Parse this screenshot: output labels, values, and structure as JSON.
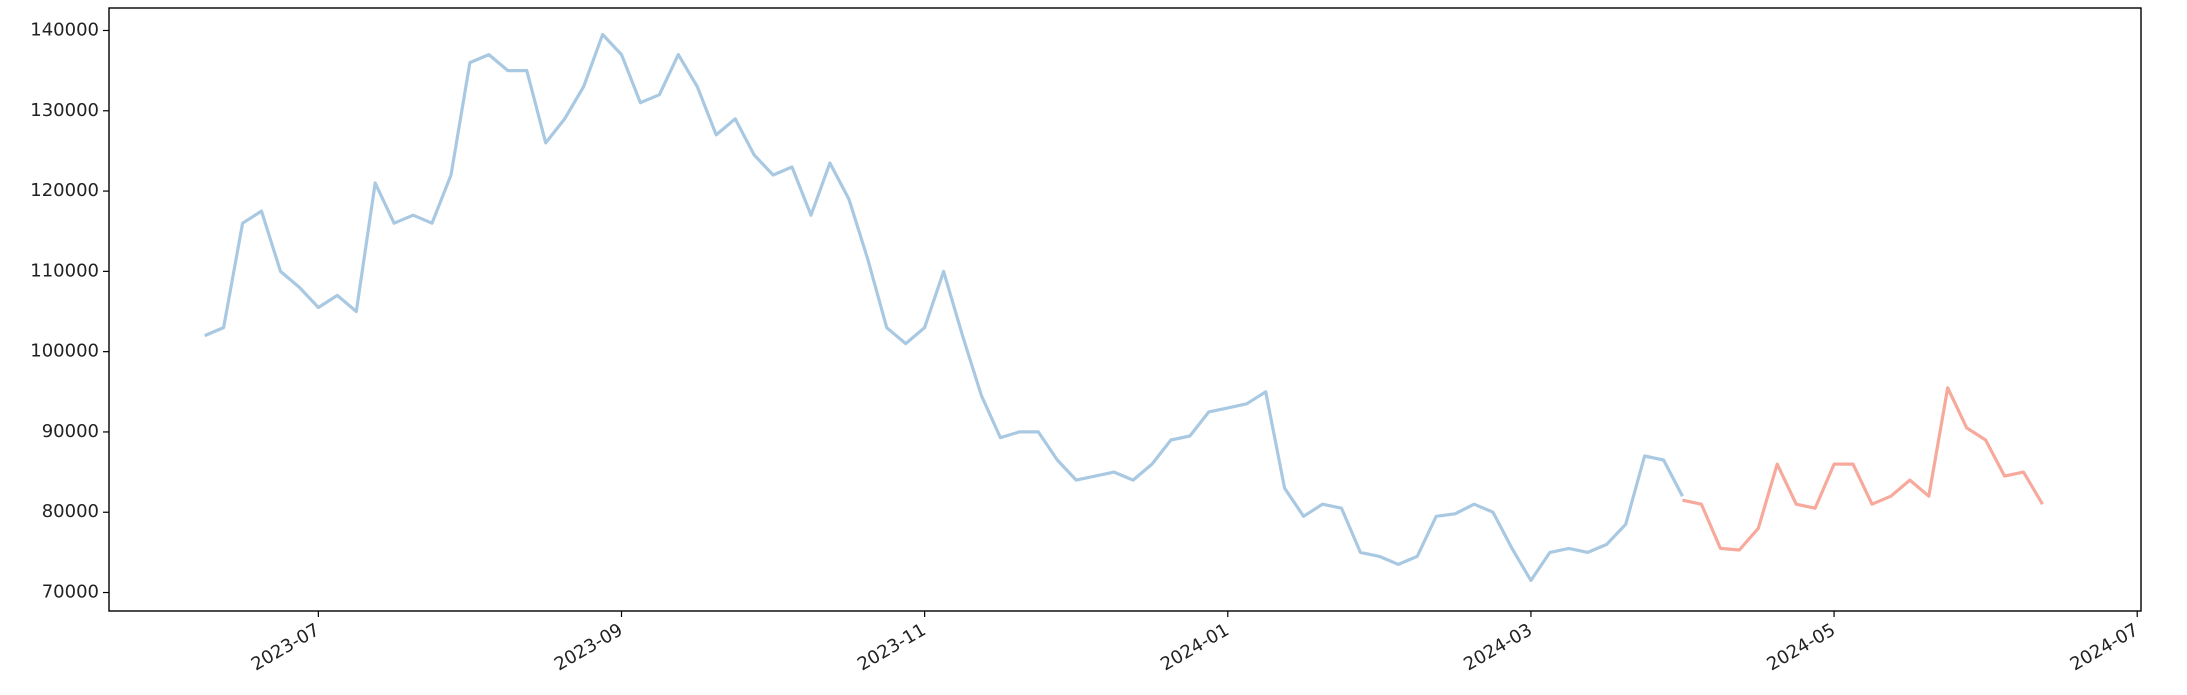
{
  "chart_data": {
    "type": "line",
    "categories": [
      null,
      null,
      null,
      null,
      null,
      null,
      null,
      null,
      "2023-07",
      null,
      null,
      null,
      null,
      null,
      null,
      null,
      null,
      null,
      null,
      null,
      null,
      null,
      null,
      null,
      "2023-09",
      null,
      null,
      null,
      null,
      null,
      null,
      null,
      null,
      null,
      null,
      null,
      null,
      null,
      null,
      null,
      "2023-11",
      null,
      null,
      null,
      null,
      null,
      null,
      null,
      null,
      null,
      null,
      null,
      null,
      null,
      null,
      null,
      "2024-01",
      null,
      null,
      null,
      null,
      null,
      null,
      null,
      null,
      null,
      null,
      null,
      null,
      null,
      null,
      null,
      "2024-03",
      null,
      null,
      null,
      null,
      null,
      null,
      null,
      null,
      null,
      null,
      null,
      null,
      null,
      null,
      null,
      "2024-05",
      null,
      null,
      null,
      null,
      null,
      null,
      null,
      null,
      null,
      null,
      null,
      null,
      null,
      null,
      null,
      "2024-07"
    ],
    "series": [
      {
        "color": "#a9c9e2",
        "values": [
          null,
          null,
          102000,
          103000,
          116000,
          117500,
          110000,
          108000,
          105500,
          107000,
          105000,
          121000,
          116000,
          117000,
          116000,
          122000,
          136000,
          137000,
          135000,
          135000,
          126000,
          129000,
          133000,
          139500,
          137000,
          131000,
          132000,
          137000,
          133000,
          127000,
          129000,
          124500,
          122000,
          123000,
          117000,
          123500,
          119000,
          111500,
          103000,
          101000,
          103000,
          110000,
          102000,
          94500,
          89300,
          90000,
          90000,
          86500,
          84000,
          84500,
          85000,
          84000,
          86000,
          89000,
          89500,
          92500,
          93000,
          93500,
          95000,
          83000,
          79500,
          81000,
          80500,
          75000,
          74500,
          73500,
          74500,
          79500,
          79800,
          81000,
          80000,
          75500,
          71500,
          75000,
          75500,
          75000,
          76000,
          78500,
          87000,
          86500,
          82000,
          null,
          null,
          null,
          null,
          null,
          null,
          null,
          null,
          null,
          null,
          null,
          null,
          null,
          null,
          null,
          null,
          null,
          null,
          null,
          null,
          null,
          null,
          null,
          null
        ]
      },
      {
        "color": "#f7a99c",
        "values": [
          null,
          null,
          null,
          null,
          null,
          null,
          null,
          null,
          null,
          null,
          null,
          null,
          null,
          null,
          null,
          null,
          null,
          null,
          null,
          null,
          null,
          null,
          null,
          null,
          null,
          null,
          null,
          null,
          null,
          null,
          null,
          null,
          null,
          null,
          null,
          null,
          null,
          null,
          null,
          null,
          null,
          null,
          null,
          null,
          null,
          null,
          null,
          null,
          null,
          null,
          null,
          null,
          null,
          null,
          null,
          null,
          null,
          null,
          null,
          null,
          null,
          null,
          null,
          null,
          null,
          null,
          null,
          null,
          null,
          null,
          null,
          null,
          null,
          null,
          null,
          null,
          null,
          null,
          null,
          null,
          81500,
          81000,
          75500,
          75300,
          78000,
          86000,
          81000,
          80500,
          86000,
          86000,
          81000,
          82000,
          84000,
          82000,
          95500,
          90500,
          89000,
          84500,
          85000,
          81000,
          null,
          null,
          null,
          null,
          null
        ]
      }
    ],
    "ylim": [
      67700,
      142800
    ],
    "yticks": [
      70000,
      80000,
      90000,
      100000,
      110000,
      120000,
      130000,
      140000
    ]
  }
}
